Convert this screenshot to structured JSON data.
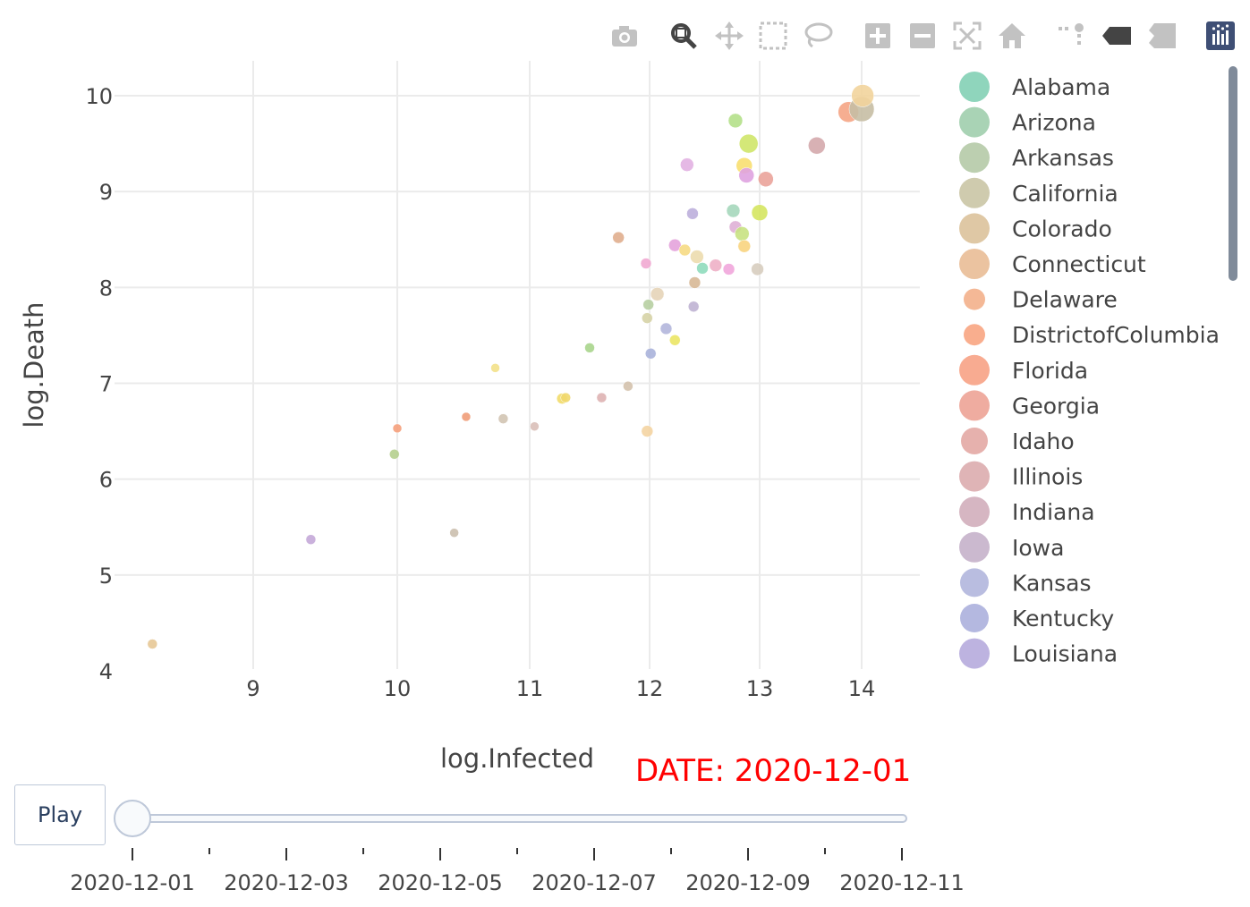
{
  "modebar": {
    "buttons": [
      "camera-icon",
      "zoom-icon",
      "pan-icon",
      "box-select-icon",
      "lasso-select-icon",
      "zoom-in-icon",
      "zoom-out-icon",
      "autoscale-icon",
      "reset-axes-icon",
      "spike-lines-icon",
      "hover-closest-icon",
      "hover-compare-icon",
      "plotly-logo-icon"
    ],
    "active": "zoom-icon"
  },
  "chart_data": {
    "type": "scatter",
    "xlabel": "log.Infected",
    "ylabel": "log.Death",
    "xlim": [
      8.0,
      14.5
    ],
    "ylim": [
      4.0,
      10.2
    ],
    "xticks": [
      "9",
      "10",
      "11",
      "12",
      "13",
      "14"
    ],
    "yticks": [
      "4",
      "5",
      "6",
      "7",
      "8",
      "9",
      "10"
    ],
    "grid": true,
    "legend_position": "right",
    "points": [
      {
        "x": 8.3,
        "y": 4.28,
        "color": "#e7c896",
        "size": 11
      },
      {
        "x": 9.4,
        "y": 5.37,
        "color": "#c4a8d8",
        "size": 11
      },
      {
        "x": 10.0,
        "y": 6.53,
        "color": "#f5a07c",
        "size": 10
      },
      {
        "x": 9.98,
        "y": 6.26,
        "color": "#b5cf8e",
        "size": 11
      },
      {
        "x": 10.52,
        "y": 6.65,
        "color": "#ef9c78",
        "size": 10
      },
      {
        "x": 10.43,
        "y": 5.44,
        "color": "#cbbfae",
        "size": 10
      },
      {
        "x": 10.8,
        "y": 6.63,
        "color": "#d1c4b3",
        "size": 11
      },
      {
        "x": 10.74,
        "y": 7.16,
        "color": "#f3e18a",
        "size": 10
      },
      {
        "x": 11.04,
        "y": 6.55,
        "color": "#d9bfb8",
        "size": 10
      },
      {
        "x": 11.27,
        "y": 6.84,
        "color": "#f2dc6a",
        "size": 12
      },
      {
        "x": 11.3,
        "y": 6.85,
        "color": "#f1d86d",
        "size": 11
      },
      {
        "x": 11.5,
        "y": 7.37,
        "color": "#a8d58c",
        "size": 11
      },
      {
        "x": 11.6,
        "y": 6.85,
        "color": "#deb3b3",
        "size": 11
      },
      {
        "x": 11.74,
        "y": 8.52,
        "color": "#e0ae8e",
        "size": 13
      },
      {
        "x": 11.82,
        "y": 6.97,
        "color": "#d4c2ad",
        "size": 11
      },
      {
        "x": 11.97,
        "y": 8.25,
        "color": "#f1a8d2",
        "size": 12
      },
      {
        "x": 11.98,
        "y": 6.5,
        "color": "#f4d4a2",
        "size": 13
      },
      {
        "x": 11.98,
        "y": 7.68,
        "color": "#d6d3a6",
        "size": 12
      },
      {
        "x": 11.99,
        "y": 7.82,
        "color": "#b7cfa2",
        "size": 12
      },
      {
        "x": 12.01,
        "y": 7.31,
        "color": "#aab2da",
        "size": 12
      },
      {
        "x": 12.07,
        "y": 7.93,
        "color": "#e5d4b8",
        "size": 15
      },
      {
        "x": 12.15,
        "y": 7.57,
        "color": "#b3b6dc",
        "size": 13
      },
      {
        "x": 12.23,
        "y": 7.45,
        "color": "#ebe665",
        "size": 12
      },
      {
        "x": 12.23,
        "y": 8.44,
        "color": "#e4a3dc",
        "size": 14
      },
      {
        "x": 12.32,
        "y": 8.39,
        "color": "#f6da84",
        "size": 13
      },
      {
        "x": 12.39,
        "y": 8.77,
        "color": "#bdafdb",
        "size": 13
      },
      {
        "x": 12.4,
        "y": 7.8,
        "color": "#bfb3d3",
        "size": 12
      },
      {
        "x": 12.41,
        "y": 8.05,
        "color": "#d7b896",
        "size": 13
      },
      {
        "x": 12.43,
        "y": 8.32,
        "color": "#ecdcae",
        "size": 15
      },
      {
        "x": 12.48,
        "y": 8.2,
        "color": "#8fdbbd",
        "size": 13
      },
      {
        "x": 12.34,
        "y": 9.28,
        "color": "#e2b1e2",
        "size": 15
      },
      {
        "x": 12.6,
        "y": 8.23,
        "color": "#eeb0c6",
        "size": 14
      },
      {
        "x": 12.72,
        "y": 8.19,
        "color": "#f1a6db",
        "size": 13
      },
      {
        "x": 12.76,
        "y": 8.8,
        "color": "#a5d7bb",
        "size": 15
      },
      {
        "x": 12.78,
        "y": 8.63,
        "color": "#dfb0d6",
        "size": 14
      },
      {
        "x": 12.78,
        "y": 9.74,
        "color": "#b4e08a",
        "size": 16
      },
      {
        "x": 12.84,
        "y": 8.56,
        "color": "#c8e282",
        "size": 16
      },
      {
        "x": 12.86,
        "y": 8.43,
        "color": "#f8d480",
        "size": 14
      },
      {
        "x": 12.86,
        "y": 9.27,
        "color": "#f8df70",
        "size": 18
      },
      {
        "x": 12.88,
        "y": 9.17,
        "color": "#dfa3e0",
        "size": 17
      },
      {
        "x": 12.9,
        "y": 9.5,
        "color": "#cfe669",
        "size": 21
      },
      {
        "x": 12.98,
        "y": 8.19,
        "color": "#d7cdbf",
        "size": 14
      },
      {
        "x": 13.0,
        "y": 8.78,
        "color": "#d5e660",
        "size": 18
      },
      {
        "x": 13.06,
        "y": 9.13,
        "color": "#eaa39a",
        "size": 17
      },
      {
        "x": 13.56,
        "y": 9.48,
        "color": "#d4a8ac",
        "size": 19
      },
      {
        "x": 13.87,
        "y": 9.83,
        "color": "#f5a585",
        "size": 23
      },
      {
        "x": 14.0,
        "y": 9.86,
        "color": "#c7bea4",
        "size": 28
      },
      {
        "x": 14.01,
        "y": 10.0,
        "color": "#f2d49c",
        "size": 25
      }
    ],
    "legend": [
      {
        "name": "Alabama",
        "color": "#8fd5bc",
        "size": 34
      },
      {
        "name": "Arizona",
        "color": "#a9d3b5",
        "size": 34
      },
      {
        "name": "Arkansas",
        "color": "#bccfb0",
        "size": 34
      },
      {
        "name": "California",
        "color": "#cfcbae",
        "size": 34
      },
      {
        "name": "Colorado",
        "color": "#dfc8a5",
        "size": 34
      },
      {
        "name": "Connecticut",
        "color": "#ebc3a0",
        "size": 34
      },
      {
        "name": "Delaware",
        "color": "#f4b896",
        "size": 24
      },
      {
        "name": "DistrictofColumbia",
        "color": "#f9ae8e",
        "size": 24
      },
      {
        "name": "Florida",
        "color": "#f8ab91",
        "size": 34
      },
      {
        "name": "Georgia",
        "color": "#efaca0",
        "size": 34
      },
      {
        "name": "Idaho",
        "color": "#e6b1ad",
        "size": 30
      },
      {
        "name": "Illinois",
        "color": "#dfb4b6",
        "size": 34
      },
      {
        "name": "Indiana",
        "color": "#d6b6c2",
        "size": 34
      },
      {
        "name": "Iowa",
        "color": "#cbb9cf",
        "size": 34
      },
      {
        "name": "Kansas",
        "color": "#b9bde0",
        "size": 32
      },
      {
        "name": "Kentucky",
        "color": "#b4b8e0",
        "size": 32
      },
      {
        "name": "Louisiana",
        "color": "#bdb3e0",
        "size": 34
      }
    ]
  },
  "animation": {
    "play_label": "Play",
    "current_label": "DATE: 2020-12-01",
    "steps": [
      "2020-12-01",
      "2020-12-02",
      "2020-12-03",
      "2020-12-04",
      "2020-12-05",
      "2020-12-06",
      "2020-12-07",
      "2020-12-08",
      "2020-12-09",
      "2020-12-10",
      "2020-12-11"
    ],
    "tick_labels": [
      "2020-12-01",
      "2020-12-03",
      "2020-12-05",
      "2020-12-07",
      "2020-12-09",
      "2020-12-11"
    ],
    "active_step": 0
  }
}
